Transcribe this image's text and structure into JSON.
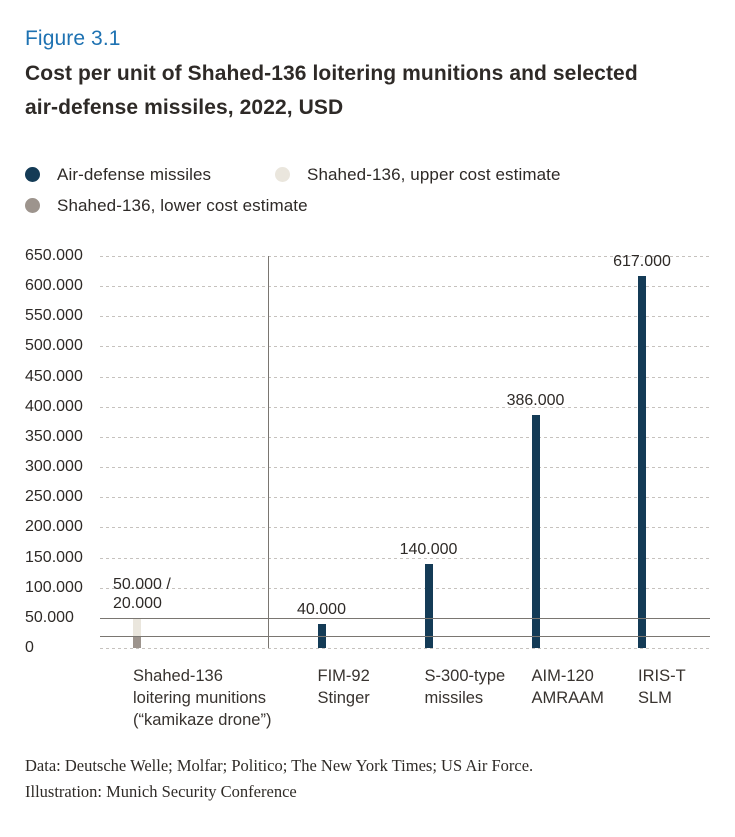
{
  "header": {
    "figure_label": "Figure 3.1",
    "title_lines": [
      "Cost per unit of Shahed-136 loitering munitions and selected",
      "air-defense missiles, 2022, USD"
    ]
  },
  "legend": {
    "items": [
      {
        "label": "Air-defense missiles",
        "color": "#143b56"
      },
      {
        "label": "Shahed-136, upper cost estimate",
        "color": "#eae6dd"
      },
      {
        "label": "Shahed-136, lower cost estimate",
        "color": "#9d948d"
      }
    ]
  },
  "chart_data": {
    "type": "bar",
    "title": "Cost per unit of Shahed-136 loitering munitions and selected air-defense missiles, 2022, USD",
    "unit": "USD",
    "year": "2022",
    "grid": "dashed-horizontal",
    "legend_position": "top",
    "y_axis": {
      "min": 0,
      "max": 650000,
      "step": 50000,
      "tick_labels": [
        "0",
        "50.000",
        "100.000",
        "150.000",
        "200.000",
        "250.000",
        "300.000",
        "350.000",
        "400.000",
        "450.000",
        "500.000",
        "550.000",
        "600.000",
        "650.000"
      ]
    },
    "reference_lines": [
      {
        "value": 50000
      },
      {
        "value": 20000
      }
    ],
    "separator_after_category_index": 0,
    "bars": [
      {
        "id": "shahed-136",
        "category_lines": [
          "Shahed-136",
          "loitering munitions",
          "(“kamikaze drone”)"
        ],
        "value_label_lines": [
          "50.000 /",
          "20.000"
        ],
        "value_label_align": "left",
        "segments": [
          {
            "series": "Shahed-136, lower cost estimate",
            "from": 0,
            "to": 20000,
            "color": "#9d948d"
          },
          {
            "series": "Shahed-136, upper cost estimate",
            "from": 20000,
            "to": 50000,
            "color": "#eae6dd"
          }
        ]
      },
      {
        "id": "fim-92-stinger",
        "category_lines": [
          "FIM-92",
          "Stinger"
        ],
        "value_label_lines": [
          "40.000"
        ],
        "value_label_align": "center",
        "segments": [
          {
            "series": "Air-defense missiles",
            "from": 0,
            "to": 40000,
            "color": "#143b56"
          }
        ]
      },
      {
        "id": "s-300-type-missiles",
        "category_lines": [
          "S-300-type",
          "missiles"
        ],
        "value_label_lines": [
          "140.000"
        ],
        "value_label_align": "center",
        "segments": [
          {
            "series": "Air-defense missiles",
            "from": 0,
            "to": 140000,
            "color": "#143b56"
          }
        ]
      },
      {
        "id": "aim-120-amraam",
        "category_lines": [
          "AIM-120",
          "AMRAAM"
        ],
        "value_label_lines": [
          "386.000"
        ],
        "value_label_align": "center",
        "segments": [
          {
            "series": "Air-defense missiles",
            "from": 0,
            "to": 386000,
            "color": "#143b56"
          }
        ]
      },
      {
        "id": "iris-t-slm",
        "category_lines": [
          "IRIS-T",
          "SLM"
        ],
        "value_label_lines": [
          "617.000"
        ],
        "value_label_align": "center",
        "segments": [
          {
            "series": "Air-defense missiles",
            "from": 0,
            "to": 617000,
            "color": "#143b56"
          }
        ]
      }
    ]
  },
  "footer": {
    "lines": [
      "Data: Deutsche Welle; Molfar; Politico; The New York Times; US Air Force.",
      "Illustration: Munich Security Conference"
    ]
  }
}
